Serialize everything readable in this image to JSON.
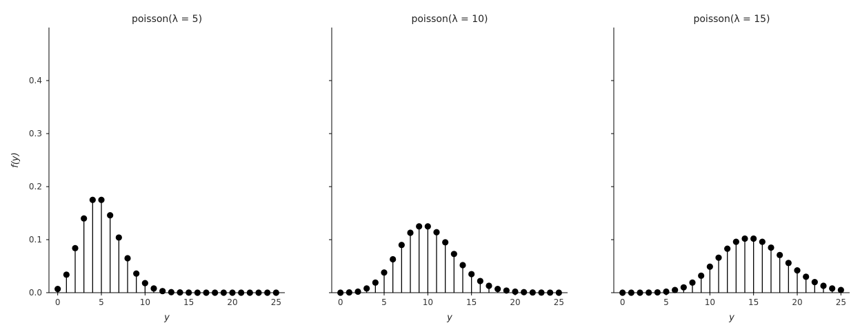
{
  "chart_data": [
    {
      "type": "scatter",
      "title": "poisson(λ = 5)",
      "xlabel": "y",
      "ylabel": "f(y)",
      "xlim": [
        -1,
        26
      ],
      "ylim": [
        0,
        0.5
      ],
      "xticks": [
        0,
        5,
        10,
        15,
        20,
        25
      ],
      "yticks": [
        0.0,
        0.1,
        0.2,
        0.3,
        0.4
      ],
      "ytick_labels_shown": true,
      "x": [
        0,
        1,
        2,
        3,
        4,
        5,
        6,
        7,
        8,
        9,
        10,
        11,
        12,
        13,
        14,
        15,
        16,
        17,
        18,
        19,
        20,
        21,
        22,
        23,
        24,
        25
      ],
      "values": [
        0.007,
        0.034,
        0.084,
        0.14,
        0.175,
        0.175,
        0.146,
        0.104,
        0.065,
        0.036,
        0.018,
        0.008,
        0.003,
        0.001,
        0.0005,
        0.0002,
        0.0,
        0.0,
        0.0,
        0.0,
        0.0,
        0.0,
        0.0,
        0.0,
        0.0,
        0.0
      ]
    },
    {
      "type": "scatter",
      "title": "poisson(λ = 10)",
      "xlabel": "y",
      "ylabel": "",
      "xlim": [
        -1,
        26
      ],
      "ylim": [
        0,
        0.5
      ],
      "xticks": [
        0,
        5,
        10,
        15,
        20,
        25
      ],
      "yticks": [
        0.0,
        0.1,
        0.2,
        0.3,
        0.4
      ],
      "ytick_labels_shown": false,
      "x": [
        0,
        1,
        2,
        3,
        4,
        5,
        6,
        7,
        8,
        9,
        10,
        11,
        12,
        13,
        14,
        15,
        16,
        17,
        18,
        19,
        20,
        21,
        22,
        23,
        24,
        25
      ],
      "values": [
        0.0,
        0.0005,
        0.002,
        0.008,
        0.019,
        0.038,
        0.063,
        0.09,
        0.113,
        0.125,
        0.125,
        0.114,
        0.095,
        0.073,
        0.052,
        0.035,
        0.022,
        0.013,
        0.007,
        0.004,
        0.002,
        0.001,
        0.0004,
        0.0002,
        0.0001,
        0.0
      ]
    },
    {
      "type": "scatter",
      "title": "poisson(λ = 15)",
      "xlabel": "y",
      "ylabel": "",
      "xlim": [
        -1,
        26
      ],
      "ylim": [
        0,
        0.5
      ],
      "xticks": [
        0,
        5,
        10,
        15,
        20,
        25
      ],
      "yticks": [
        0.0,
        0.1,
        0.2,
        0.3,
        0.4
      ],
      "ytick_labels_shown": false,
      "x": [
        0,
        1,
        2,
        3,
        4,
        5,
        6,
        7,
        8,
        9,
        10,
        11,
        12,
        13,
        14,
        15,
        16,
        17,
        18,
        19,
        20,
        21,
        22,
        23,
        24,
        25
      ],
      "values": [
        0.0,
        0.0,
        0.0,
        0.0002,
        0.0006,
        0.002,
        0.005,
        0.01,
        0.019,
        0.032,
        0.049,
        0.066,
        0.083,
        0.096,
        0.102,
        0.102,
        0.096,
        0.085,
        0.071,
        0.056,
        0.042,
        0.03,
        0.02,
        0.013,
        0.008,
        0.005
      ]
    }
  ]
}
